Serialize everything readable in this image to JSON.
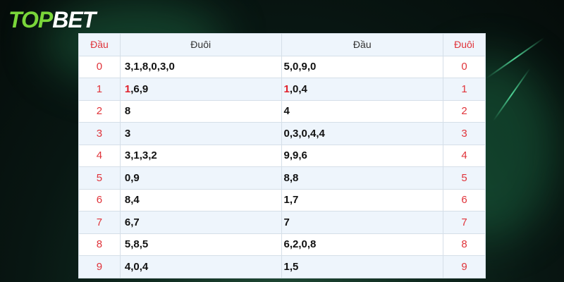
{
  "logo": {
    "text_green_1": "T",
    "text_green_2": "OP",
    "text_white": "BET",
    "brand_green": "#7ad63a"
  },
  "table": {
    "headers": [
      "Đầu",
      "Đuôi",
      "Đầu",
      "Đuôi"
    ],
    "rows": [
      {
        "dau": "0",
        "duoi": {
          "hl": "",
          "rest": "3,1,8,0,3,0"
        },
        "dau2": {
          "hl": "",
          "rest": "5,0,9,0"
        },
        "duoi2": "0"
      },
      {
        "dau": "1",
        "duoi": {
          "hl": "1",
          "rest": ",6,9"
        },
        "dau2": {
          "hl": "1",
          "rest": ",0,4"
        },
        "duoi2": "1"
      },
      {
        "dau": "2",
        "duoi": {
          "hl": "",
          "rest": "8"
        },
        "dau2": {
          "hl": "",
          "rest": "4"
        },
        "duoi2": "2"
      },
      {
        "dau": "3",
        "duoi": {
          "hl": "",
          "rest": "3"
        },
        "dau2": {
          "hl": "",
          "rest": "0,3,0,4,4"
        },
        "duoi2": "3"
      },
      {
        "dau": "4",
        "duoi": {
          "hl": "",
          "rest": "3,1,3,2"
        },
        "dau2": {
          "hl": "",
          "rest": "9,9,6"
        },
        "duoi2": "4"
      },
      {
        "dau": "5",
        "duoi": {
          "hl": "",
          "rest": "0,9"
        },
        "dau2": {
          "hl": "",
          "rest": "8,8"
        },
        "duoi2": "5"
      },
      {
        "dau": "6",
        "duoi": {
          "hl": "",
          "rest": "8,4"
        },
        "dau2": {
          "hl": "",
          "rest": "1,7"
        },
        "duoi2": "6"
      },
      {
        "dau": "7",
        "duoi": {
          "hl": "",
          "rest": "6,7"
        },
        "dau2": {
          "hl": "",
          "rest": "7"
        },
        "duoi2": "7"
      },
      {
        "dau": "8",
        "duoi": {
          "hl": "",
          "rest": "5,8,5"
        },
        "dau2": {
          "hl": "",
          "rest": "6,2,0,8"
        },
        "duoi2": "8"
      },
      {
        "dau": "9",
        "duoi": {
          "hl": "",
          "rest": "4,0,4"
        },
        "dau2": {
          "hl": "",
          "rest": "1,5"
        },
        "duoi2": "9"
      }
    ]
  }
}
